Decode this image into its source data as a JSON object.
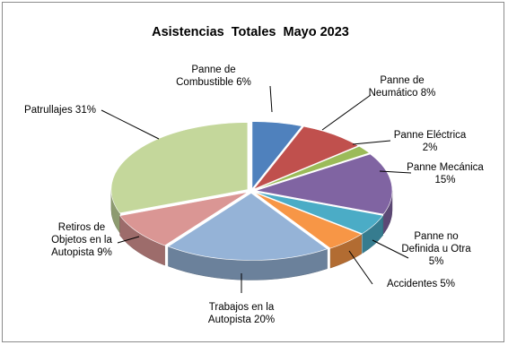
{
  "chart_data": {
    "type": "pie",
    "style": "3d-exploded",
    "title": "Asistencias  Totales  Mayo 2023",
    "slices": [
      {
        "name": "Panne de Combustible",
        "value": 6,
        "color": "#4f81bd",
        "label_lines": [
          "Panne de",
          "Combustible 6%"
        ]
      },
      {
        "name": "Panne de Neumático",
        "value": 8,
        "color": "#c0504d",
        "label_lines": [
          "Panne de",
          "Neumático 8%"
        ]
      },
      {
        "name": "Panne Eléctrica",
        "value": 2,
        "color": "#9bbb59",
        "label_lines": [
          "Panne Eléctrica",
          "2%"
        ]
      },
      {
        "name": "Panne Mecánica",
        "value": 15,
        "color": "#8064a2",
        "label_lines": [
          "Panne Mecánica",
          "15%"
        ]
      },
      {
        "name": "Panne no Definida u Otra",
        "value": 5,
        "color": "#4bacc6",
        "label_lines": [
          "Panne no",
          "Definida u Otra",
          "5%"
        ]
      },
      {
        "name": "Accidentes",
        "value": 5,
        "color": "#f79646",
        "label_lines": [
          "Accidentes 5%"
        ]
      },
      {
        "name": "Trabajos en la Autopista",
        "value": 20,
        "color": "#95b3d7",
        "label_lines": [
          "Trabajos en la",
          "Autopista 20%"
        ]
      },
      {
        "name": "Retiros de Objetos en la Autopista",
        "value": 9,
        "color": "#da9694",
        "label_lines": [
          "Retiros de",
          "Objetos en la",
          "Autopista 9%"
        ]
      },
      {
        "name": "Patrullajes",
        "value": 31,
        "color": "#c4d79b",
        "label_lines": [
          "Patrullajes 31%"
        ]
      }
    ]
  }
}
